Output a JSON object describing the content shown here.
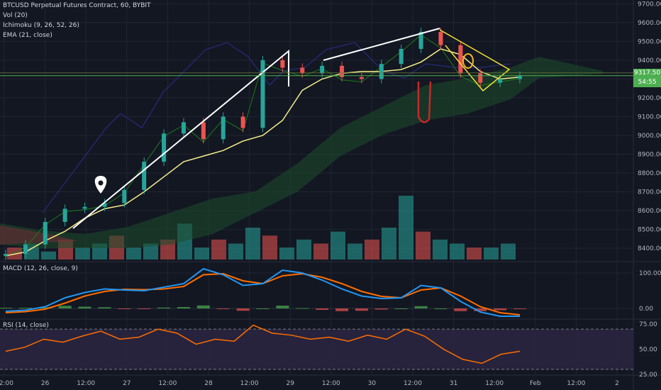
{
  "legend": {
    "symbol": "BTCUSD Perpetual Futures Contract, 60, BYBIT",
    "vol": "Vol (20)",
    "ichimoku": "Ichimoku (9, 26, 52, 26)",
    "ema": "EMA (21, close)",
    "macd": "MACD (12, 26, close, 9)",
    "rsi": "RSI (14, close)"
  },
  "price_tag": {
    "price": "9317.50",
    "countdown": "54:55",
    "color": "#4caf50"
  },
  "colors": {
    "background": "#131722",
    "grid": "#1f2533",
    "up": "#26a69a",
    "down": "#ef5350",
    "ema": "#f5ee8c",
    "conversion": "#1b7a1b",
    "lagging": "#2b2f8f",
    "macd": "#2196f3",
    "signal": "#ff6d00",
    "rsi": "#ff6d00",
    "rsi_band": "#2a2540"
  },
  "chart_data": [
    {
      "type": "line",
      "title": "BTCUSD Perpetual Futures Contract, 60, BYBIT",
      "x_ticks": [
        "12:00",
        "26",
        "12:00",
        "27",
        "12:00",
        "28",
        "12:00",
        "29",
        "12:00",
        "30",
        "12:00",
        "31",
        "12:00",
        "Feb",
        "12:00",
        "2"
      ],
      "y_ticks": [
        8400,
        8500,
        8600,
        8700,
        8800,
        8900,
        9000,
        9100,
        9200,
        9300,
        9400,
        9500,
        9600,
        9700
      ],
      "ylim": [
        8340,
        9720
      ],
      "series": [
        {
          "name": "EMA (21, close)",
          "values": [
            8360,
            8380,
            8440,
            8490,
            8560,
            8610,
            8630,
            8700,
            8780,
            8860,
            8890,
            8920,
            8970,
            9000,
            9080,
            9240,
            9300,
            9330,
            9340,
            9340,
            9350,
            9390,
            9460,
            9430,
            9340,
            9300,
            9310
          ]
        },
        {
          "name": "Close",
          "values": [
            8370,
            8420,
            8540,
            8610,
            8620,
            8640,
            8710,
            8860,
            9010,
            9070,
            8980,
            9100,
            9040,
            9400,
            9360,
            9330,
            9370,
            9310,
            9300,
            9380,
            9460,
            9550,
            9480,
            9330,
            9280,
            9300,
            9317.5
          ]
        }
      ]
    },
    {
      "type": "bar",
      "title": "Vol (20)",
      "values": [
        3,
        4,
        2,
        5,
        3,
        4,
        6,
        3,
        4,
        5,
        9,
        3,
        5,
        4,
        8,
        6,
        3,
        5,
        4,
        7,
        4,
        5,
        8,
        16,
        7,
        5,
        4,
        3,
        3,
        4
      ]
    },
    {
      "type": "line",
      "title": "MACD (12, 26, close, 9)",
      "y_ticks": [
        100,
        0
      ],
      "ylim": [
        -30,
        130
      ],
      "series": [
        {
          "name": "MACD",
          "values": [
            -8,
            -5,
            5,
            30,
            45,
            55,
            52,
            50,
            60,
            70,
            112,
            95,
            65,
            70,
            108,
            100,
            80,
            55,
            35,
            28,
            30,
            65,
            58,
            20,
            -10,
            -22,
            -22
          ]
        },
        {
          "name": "Signal",
          "values": [
            -12,
            -9,
            -2,
            15,
            35,
            48,
            54,
            53,
            55,
            62,
            95,
            98,
            78,
            70,
            92,
            98,
            88,
            70,
            48,
            34,
            30,
            52,
            58,
            35,
            5,
            -12,
            -18
          ]
        }
      ]
    },
    {
      "type": "line",
      "title": "RSI (14, close)",
      "y_ticks": [
        75,
        50,
        25
      ],
      "ylim": [
        25,
        80
      ],
      "series": [
        {
          "name": "RSI",
          "values": [
            48,
            52,
            60,
            57,
            63,
            68,
            60,
            62,
            70,
            66,
            55,
            60,
            58,
            74,
            66,
            64,
            60,
            62,
            58,
            64,
            60,
            70,
            63,
            50,
            40,
            36,
            45,
            48
          ]
        }
      ]
    }
  ]
}
